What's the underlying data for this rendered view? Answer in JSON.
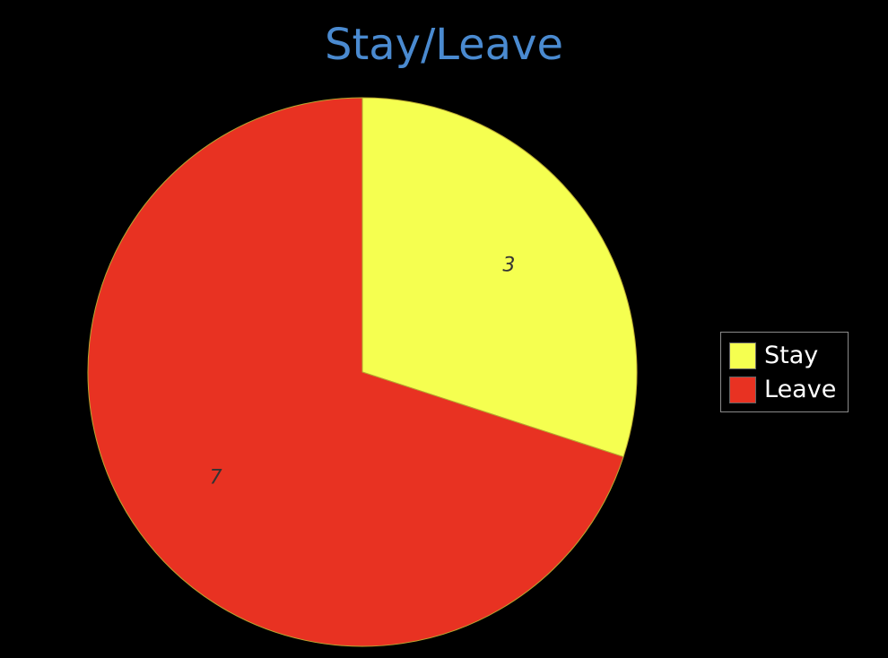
{
  "chart_data": {
    "type": "pie",
    "title": "Stay/Leave",
    "categories": [
      "Stay",
      "Leave"
    ],
    "values": [
      3,
      7
    ],
    "colors": [
      "#f5ff50",
      "#e83222"
    ],
    "data_labels": [
      "3",
      "7"
    ],
    "legend_position": "right",
    "background": "#000000",
    "title_color": "#4a8ad0"
  },
  "legend": {
    "items": [
      {
        "label": "Stay",
        "color": "#f5ff50"
      },
      {
        "label": "Leave",
        "color": "#e83222"
      }
    ]
  }
}
